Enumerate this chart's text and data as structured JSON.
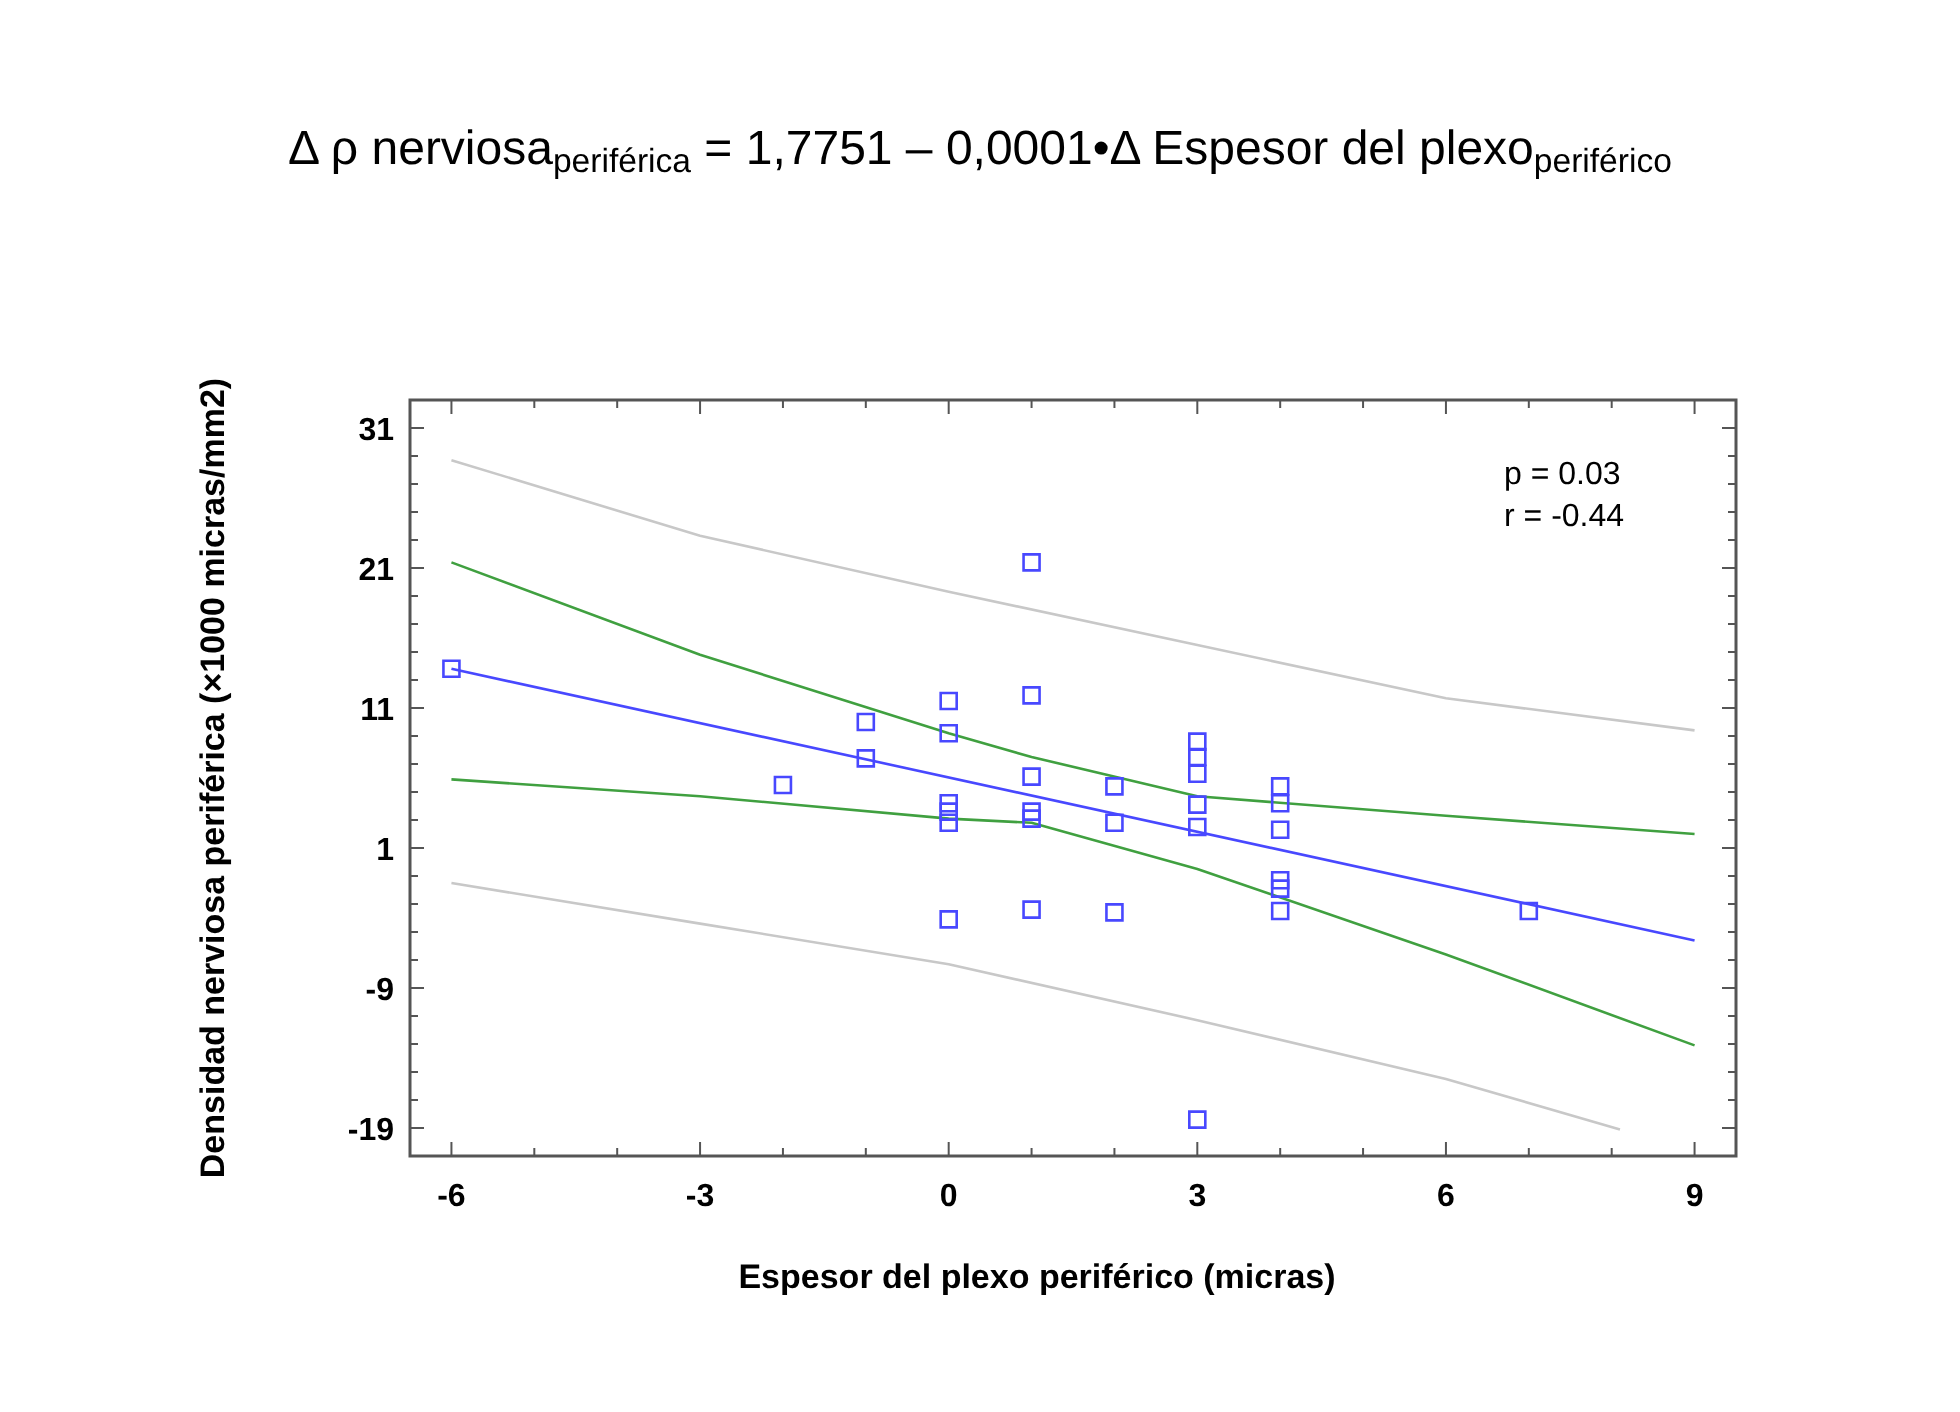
{
  "chart_data": {
    "type": "scatter",
    "title": "Δ ρ nerviosa$_{periférica}$ = 1,7751 – 0,0001•Δ Espesor del plexo$_{periférico}$",
    "xlabel": "Espesor del plexo periférico (micras)",
    "ylabel": "Densidad nerviosa periférica (×1000 micras/mm2)",
    "annotations": [
      "p = 0.03",
      "r = -0.44"
    ],
    "xlim": [
      -6.5,
      9.5
    ],
    "ylim": [
      -21,
      33
    ],
    "xticks": [
      -6,
      {
        "value": -5,
        "label": null
      },
      {
        "value": -4,
        "label": null
      },
      -3,
      {
        "value": -2,
        "label": null
      },
      {
        "value": -1,
        "label": null
      },
      0,
      {
        "value": 1,
        "label": null
      },
      {
        "value": 2,
        "label": null
      },
      3,
      {
        "value": 4,
        "label": null
      },
      {
        "value": 5,
        "label": null
      },
      6,
      {
        "value": 7,
        "label": null
      },
      {
        "value": 8,
        "label": null
      },
      9
    ],
    "yticks": [
      -19,
      {
        "value": -17,
        "label": null
      },
      {
        "value": -15,
        "label": null
      },
      {
        "value": -13,
        "label": null
      },
      {
        "value": -11,
        "label": null
      },
      -9,
      {
        "value": -7,
        "label": null
      },
      {
        "value": -5,
        "label": null
      },
      {
        "value": -3,
        "label": null
      },
      {
        "value": -1,
        "label": null
      },
      1,
      {
        "value": 3,
        "label": null
      },
      {
        "value": 5,
        "label": null
      },
      {
        "value": 7,
        "label": null
      },
      {
        "value": 9,
        "label": null
      },
      11,
      {
        "value": 13,
        "label": null
      },
      {
        "value": 15,
        "label": null
      },
      {
        "value": 17,
        "label": null
      },
      {
        "value": 19,
        "label": null
      },
      21,
      {
        "value": 23,
        "label": null
      },
      {
        "value": 25,
        "label": null
      },
      {
        "value": 27,
        "label": null
      },
      {
        "value": 29,
        "label": null
      },
      31
    ],
    "series": [
      {
        "type": "line",
        "color": "#c8c8c8",
        "marker": "none",
        "x": [
          -6,
          -3,
          0,
          3,
          6,
          9
        ],
        "values": [
          28.7,
          23.3,
          19.3,
          15.5,
          11.7,
          9.4
        ]
      },
      {
        "type": "line",
        "color": "#c8c8c8",
        "marker": "none",
        "x": [
          -6,
          -3,
          0,
          3,
          6,
          8.1
        ],
        "values": [
          -1.5,
          -4.4,
          -7.3,
          -11.3,
          -15.5,
          -19.1
        ]
      },
      {
        "type": "line",
        "color": "#40a040",
        "marker": "none",
        "x": [
          -6,
          -3,
          0,
          1,
          3,
          6,
          9
        ],
        "values": [
          21.4,
          14.8,
          9.2,
          7.5,
          4.7,
          3.3,
          2.0
        ]
      },
      {
        "type": "line",
        "color": "#40a040",
        "marker": "none",
        "x": [
          -6,
          -3,
          0,
          1,
          3,
          6,
          9
        ],
        "values": [
          5.9,
          4.7,
          3.1,
          2.8,
          -0.5,
          -6.6,
          -13.1
        ]
      },
      {
        "type": "line",
        "color": "#4848ff",
        "marker": "none",
        "x": [
          -6,
          9
        ],
        "values": [
          13.8,
          -5.6
        ]
      },
      {
        "color": "#4848ff",
        "marker": "square",
        "x": [
          -6,
          -2,
          -1,
          -1,
          0,
          0,
          0,
          0,
          0,
          0,
          1,
          1,
          1,
          1,
          1,
          1,
          2,
          2,
          2,
          3,
          3,
          3,
          3,
          3,
          3,
          4,
          4,
          4,
          4,
          4,
          4,
          7
        ],
        "values": [
          13.8,
          5.5,
          10.0,
          7.4,
          11.5,
          9.2,
          4.2,
          3.6,
          2.8,
          -4.1,
          21.4,
          11.9,
          6.1,
          3.6,
          3.1,
          -3.4,
          5.4,
          2.8,
          -3.6,
          8.6,
          7.5,
          6.3,
          4.1,
          2.5,
          -18.4,
          5.4,
          4.2,
          2.3,
          -1.3,
          -1.9,
          -3.5,
          -3.5
        ]
      }
    ]
  }
}
